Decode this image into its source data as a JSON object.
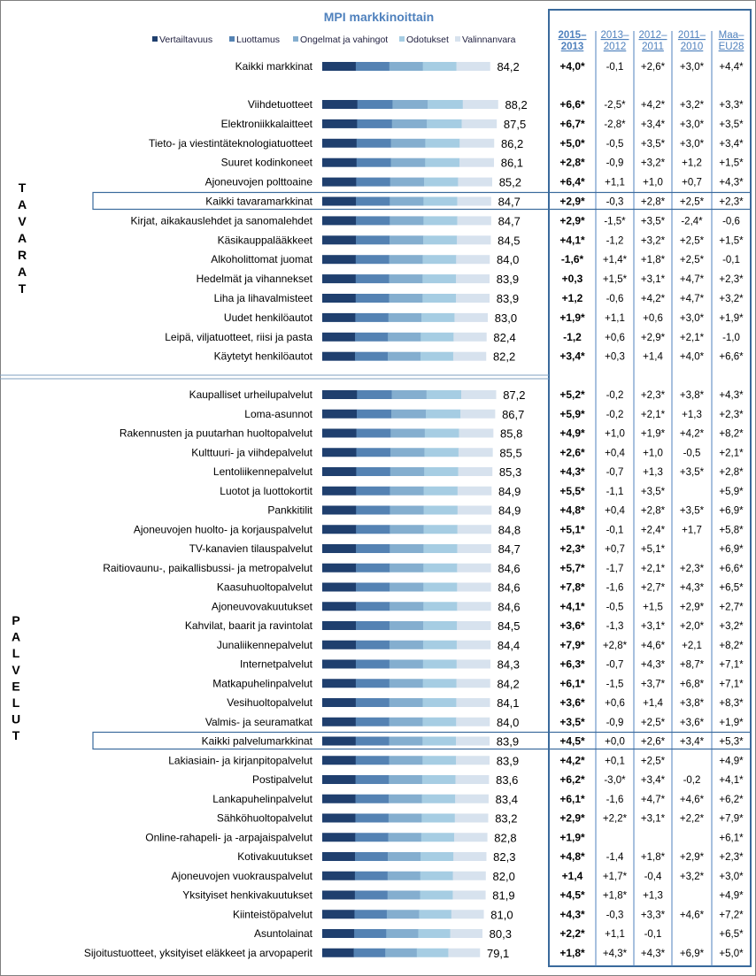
{
  "chart_data": {
    "type": "bar",
    "stacked": true,
    "orientation": "horizontal",
    "title": "MPI markkinoittain",
    "series_names": [
      "Vertailtavuus",
      "Luottamus",
      "Ongelmat ja vahingot",
      "Odotukset",
      "Valinnanvara"
    ],
    "colors": [
      "#1f3f6e",
      "#5482b3",
      "#84aecf",
      "#a6cde3",
      "#d7e2ee"
    ],
    "column_headers": [
      "2015–\n2013",
      "2013–\n2012",
      "2012–\n2011",
      "2011–\n2010",
      "Maa–\nEU28"
    ],
    "section_labels": [
      "TAVARAT",
      "PALVELUT"
    ],
    "rows": [
      {
        "name": "Kaikki markkinat",
        "score": "84,2",
        "value": 84.2,
        "changes": [
          "+4,0*",
          "-0,1",
          "+2,6*",
          "+3,0*",
          "+4,4*"
        ]
      },
      {
        "name": "Viihdetuotteet",
        "score": "88,2",
        "value": 88.2,
        "changes": [
          "+6,6*",
          "-2,5*",
          "+4,2*",
          "+3,2*",
          "+3,3*"
        ]
      },
      {
        "name": "Elektroniikkalaitteet",
        "score": "87,5",
        "value": 87.5,
        "changes": [
          "+6,7*",
          "-2,8*",
          "+3,4*",
          "+3,0*",
          "+3,5*"
        ]
      },
      {
        "name": "Tieto- ja viestintäteknologiatuotteet",
        "score": "86,2",
        "value": 86.2,
        "changes": [
          "+5,0*",
          "-0,5",
          "+3,5*",
          "+3,0*",
          "+3,4*"
        ]
      },
      {
        "name": "Suuret kodinkoneet",
        "score": "86,1",
        "value": 86.1,
        "changes": [
          "+2,8*",
          "-0,9",
          "+3,2*",
          "+1,2",
          "+1,5*"
        ]
      },
      {
        "name": "Ajoneuvojen polttoaine",
        "score": "85,2",
        "value": 85.2,
        "changes": [
          "+6,4*",
          "+1,1",
          "+1,0",
          "+0,7",
          "+4,3*"
        ]
      },
      {
        "name": "Kaikki tavaramarkkinat",
        "score": "84,7",
        "value": 84.7,
        "changes": [
          "+2,9*",
          "-0,3",
          "+2,8*",
          "+2,5*",
          "+2,3*"
        ],
        "highlight": true
      },
      {
        "name": "Kirjat, aikakauslehdet ja sanomalehdet",
        "score": "84,7",
        "value": 84.7,
        "changes": [
          "+2,9*",
          "-1,5*",
          "+3,5*",
          "-2,4*",
          "-0,6"
        ]
      },
      {
        "name": "Käsikauppalääkkeet",
        "score": "84,5",
        "value": 84.5,
        "changes": [
          "+4,1*",
          "-1,2",
          "+3,2*",
          "+2,5*",
          "+1,5*"
        ]
      },
      {
        "name": "Alkoholittomat juomat",
        "score": "84,0",
        "value": 84.0,
        "changes": [
          "-1,6*",
          "+1,4*",
          "+1,8*",
          "+2,5*",
          "-0,1"
        ]
      },
      {
        "name": "Hedelmät ja vihannekset",
        "score": "83,9",
        "value": 83.9,
        "changes": [
          "+0,3",
          "+1,5*",
          "+3,1*",
          "+4,7*",
          "+2,3*"
        ]
      },
      {
        "name": "Liha ja lihavalmisteet",
        "score": "83,9",
        "value": 83.9,
        "changes": [
          "+1,2",
          "-0,6",
          "+4,2*",
          "+4,7*",
          "+3,2*"
        ]
      },
      {
        "name": "Uudet henkilöautot",
        "score": "83,0",
        "value": 83.0,
        "changes": [
          "+1,9*",
          "+1,1",
          "+0,6",
          "+3,0*",
          "+1,9*"
        ]
      },
      {
        "name": "Leipä, viljatuotteet, riisi ja pasta",
        "score": "82,4",
        "value": 82.4,
        "changes": [
          "-1,2",
          "+0,6",
          "+2,9*",
          "+2,1*",
          "-1,0"
        ]
      },
      {
        "name": "Käytetyt henkilöautot",
        "score": "82,2",
        "value": 82.2,
        "changes": [
          "+3,4*",
          "+0,3",
          "+1,4",
          "+4,0*",
          "+6,6*"
        ]
      },
      {
        "name": "Kaupalliset urheilupalvelut",
        "score": "87,2",
        "value": 87.2,
        "changes": [
          "+5,2*",
          "-0,2",
          "+2,3*",
          "+3,8*",
          "+4,3*"
        ]
      },
      {
        "name": "Loma-asunnot",
        "score": "86,7",
        "value": 86.7,
        "changes": [
          "+5,9*",
          "-0,2",
          "+2,1*",
          "+1,3",
          "+2,3*"
        ]
      },
      {
        "name": "Rakennusten ja puutarhan huoltopalvelut",
        "score": "85,8",
        "value": 85.8,
        "changes": [
          "+4,9*",
          "+1,0",
          "+1,9*",
          "+4,2*",
          "+8,2*"
        ]
      },
      {
        "name": "Kulttuuri- ja viihdepalvelut",
        "score": "85,5",
        "value": 85.5,
        "changes": [
          "+2,6*",
          "+0,4",
          "+1,0",
          "-0,5",
          "+2,1*"
        ]
      },
      {
        "name": "Lentoliikennepalvelut",
        "score": "85,3",
        "value": 85.3,
        "changes": [
          "+4,3*",
          "-0,7",
          "+1,3",
          "+3,5*",
          "+2,8*"
        ]
      },
      {
        "name": "Luotot ja luottokortit",
        "score": "84,9",
        "value": 84.9,
        "changes": [
          "+5,5*",
          "-1,1",
          "+3,5*",
          "",
          "+5,9*"
        ]
      },
      {
        "name": "Pankkitilit",
        "score": "84,9",
        "value": 84.9,
        "changes": [
          "+4,8*",
          "+0,4",
          "+2,8*",
          "+3,5*",
          "+6,9*"
        ]
      },
      {
        "name": "Ajoneuvojen huolto- ja korjauspalvelut",
        "score": "84,8",
        "value": 84.8,
        "changes": [
          "+5,1*",
          "-0,1",
          "+2,4*",
          "+1,7",
          "+5,8*"
        ]
      },
      {
        "name": "TV-kanavien tilauspalvelut",
        "score": "84,7",
        "value": 84.7,
        "changes": [
          "+2,3*",
          "+0,7",
          "+5,1*",
          "",
          "+6,9*"
        ]
      },
      {
        "name": "Raitiovaunu-, paikallisbussi- ja metropalvelut",
        "score": "84,6",
        "value": 84.6,
        "changes": [
          "+5,7*",
          "-1,7",
          "+2,1*",
          "+2,3*",
          "+6,6*"
        ]
      },
      {
        "name": "Kaasuhuoltopalvelut",
        "score": "84,6",
        "value": 84.6,
        "changes": [
          "+7,8*",
          "-1,6",
          "+2,7*",
          "+4,3*",
          "+6,5*"
        ]
      },
      {
        "name": "Ajoneuvovakuutukset",
        "score": "84,6",
        "value": 84.6,
        "changes": [
          "+4,1*",
          "-0,5",
          "+1,5",
          "+2,9*",
          "+2,7*"
        ]
      },
      {
        "name": "Kahvilat, baarit ja ravintolat",
        "score": "84,5",
        "value": 84.5,
        "changes": [
          "+3,6*",
          "-1,3",
          "+3,1*",
          "+2,0*",
          "+3,2*"
        ]
      },
      {
        "name": "Junaliikennepalvelut",
        "score": "84,4",
        "value": 84.4,
        "changes": [
          "+7,9*",
          "+2,8*",
          "+4,6*",
          "+2,1",
          "+8,2*"
        ]
      },
      {
        "name": "Internetpalvelut",
        "score": "84,3",
        "value": 84.3,
        "changes": [
          "+6,3*",
          "-0,7",
          "+4,3*",
          "+8,7*",
          "+7,1*"
        ]
      },
      {
        "name": "Matkapuhelinpalvelut",
        "score": "84,2",
        "value": 84.2,
        "changes": [
          "+6,1*",
          "-1,5",
          "+3,7*",
          "+6,8*",
          "+7,1*"
        ]
      },
      {
        "name": "Vesihuoltopalvelut",
        "score": "84,1",
        "value": 84.1,
        "changes": [
          "+3,6*",
          "+0,6",
          "+1,4",
          "+3,8*",
          "+8,3*"
        ]
      },
      {
        "name": "Valmis- ja seuramatkat",
        "score": "84,0",
        "value": 84.0,
        "changes": [
          "+3,5*",
          "-0,9",
          "+2,5*",
          "+3,6*",
          "+1,9*"
        ]
      },
      {
        "name": "Kaikki palvelumarkkinat",
        "score": "83,9",
        "value": 83.9,
        "changes": [
          "+4,5*",
          "+0,0",
          "+2,6*",
          "+3,4*",
          "+5,3*"
        ],
        "highlight": true
      },
      {
        "name": "Lakiasiain- ja kirjanpitopalvelut",
        "score": "83,9",
        "value": 83.9,
        "changes": [
          "+4,2*",
          "+0,1",
          "+2,5*",
          "",
          "+4,9*"
        ]
      },
      {
        "name": "Postipalvelut",
        "score": "83,6",
        "value": 83.6,
        "changes": [
          "+6,2*",
          "-3,0*",
          "+3,4*",
          "-0,2",
          "+4,1*"
        ]
      },
      {
        "name": "Lankapuhelinpalvelut",
        "score": "83,4",
        "value": 83.4,
        "changes": [
          "+6,1*",
          "-1,6",
          "+4,7*",
          "+4,6*",
          "+6,2*"
        ]
      },
      {
        "name": "Sähköhuoltopalvelut",
        "score": "83,2",
        "value": 83.2,
        "changes": [
          "+2,9*",
          "+2,2*",
          "+3,1*",
          "+2,2*",
          "+7,9*"
        ]
      },
      {
        "name": "Online-rahapeli- ja -arpajaispalvelut",
        "score": "82,8",
        "value": 82.8,
        "changes": [
          "+1,9*",
          "",
          "",
          "",
          "+6,1*"
        ]
      },
      {
        "name": "Kotivakuutukset",
        "score": "82,3",
        "value": 82.3,
        "changes": [
          "+4,8*",
          "-1,4",
          "+1,8*",
          "+2,9*",
          "+2,3*"
        ]
      },
      {
        "name": "Ajoneuvojen vuokrauspalvelut",
        "score": "82,0",
        "value": 82.0,
        "changes": [
          "+1,4",
          "+1,7*",
          "-0,4",
          "+3,2*",
          "+3,0*"
        ]
      },
      {
        "name": "Yksityiset henkivakuutukset",
        "score": "81,9",
        "value": 81.9,
        "changes": [
          "+4,5*",
          "+1,8*",
          "+1,3",
          "",
          "+4,9*"
        ]
      },
      {
        "name": "Kiinteistöpalvelut",
        "score": "81,0",
        "value": 81.0,
        "changes": [
          "+4,3*",
          "-0,3",
          "+3,3*",
          "+4,6*",
          "+7,2*"
        ]
      },
      {
        "name": "Asuntolainat",
        "score": "80,3",
        "value": 80.3,
        "changes": [
          "+2,2*",
          "+1,1",
          "-0,1",
          "",
          "+6,5*"
        ]
      },
      {
        "name": "Sijoitustuotteet, yksityiset eläkkeet ja arvopaperit",
        "score": "79,1",
        "value": 79.1,
        "changes": [
          "+1,8*",
          "+4,3*",
          "+4,3*",
          "+6,9*",
          "+5,0*"
        ]
      }
    ]
  }
}
